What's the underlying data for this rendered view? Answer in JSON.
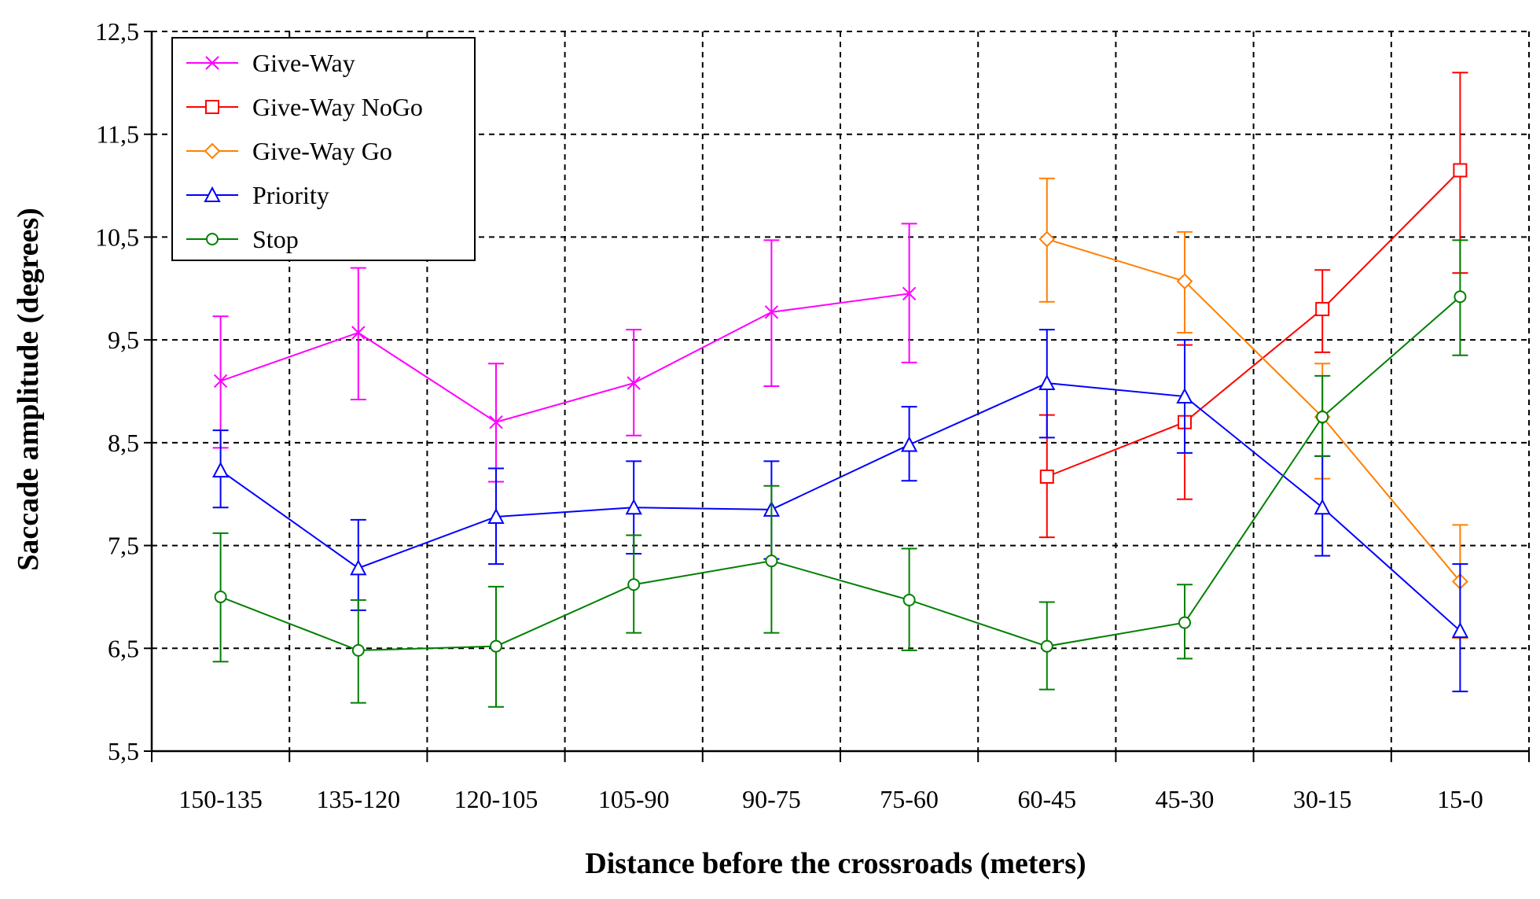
{
  "chart_data": {
    "type": "line",
    "title": "",
    "xlabel": "Distance before the crossroads (meters)",
    "ylabel": "Saccade amplitude (degrees)",
    "categories": [
      "150-135",
      "135-120",
      "120-105",
      "105-90",
      "90-75",
      "75-60",
      "60-45",
      "45-30",
      "30-15",
      "15-0"
    ],
    "ylim": [
      5.5,
      12.5
    ],
    "yticks": [
      "5,5",
      "6,5",
      "7,5",
      "8,5",
      "9,5",
      "10,5",
      "11,5",
      "12,5"
    ],
    "grid": true,
    "legend_position": "top-left",
    "series": [
      {
        "name": "Give-Way",
        "color": "#ff00ff",
        "marker": "x",
        "values": [
          9.1,
          9.57,
          8.7,
          9.08,
          9.77,
          9.95,
          null,
          null,
          null,
          null
        ],
        "err_low": [
          8.45,
          8.92,
          8.12,
          8.57,
          9.05,
          9.28,
          null,
          null,
          null,
          null
        ],
        "err_high": [
          9.73,
          10.2,
          9.27,
          9.6,
          10.47,
          10.63,
          null,
          null,
          null,
          null
        ]
      },
      {
        "name": "Give-Way NoGo",
        "color": "#ff0000",
        "marker": "square",
        "values": [
          null,
          null,
          null,
          null,
          null,
          null,
          8.17,
          8.7,
          9.8,
          11.15
        ],
        "err_low": [
          null,
          null,
          null,
          null,
          null,
          null,
          7.58,
          7.95,
          9.38,
          10.15
        ],
        "err_high": [
          null,
          null,
          null,
          null,
          null,
          null,
          8.77,
          9.45,
          10.18,
          12.1
        ]
      },
      {
        "name": "Give-Way Go",
        "color": "#ff8000",
        "marker": "diamond",
        "values": [
          null,
          null,
          null,
          null,
          null,
          null,
          10.48,
          10.07,
          8.75,
          7.15
        ],
        "err_low": [
          null,
          null,
          null,
          null,
          null,
          null,
          9.87,
          9.57,
          8.15,
          6.6
        ],
        "err_high": [
          null,
          null,
          null,
          null,
          null,
          null,
          11.07,
          10.55,
          9.27,
          7.7
        ]
      },
      {
        "name": "Priority",
        "color": "#0000ff",
        "marker": "triangle",
        "values": [
          8.23,
          7.28,
          7.78,
          7.87,
          7.85,
          8.48,
          9.08,
          8.95,
          7.87,
          6.67
        ],
        "err_low": [
          7.87,
          6.87,
          7.32,
          7.42,
          7.37,
          8.13,
          8.55,
          8.4,
          7.4,
          6.08
        ],
        "err_high": [
          8.62,
          7.75,
          8.25,
          8.32,
          8.32,
          8.85,
          9.6,
          9.5,
          8.37,
          7.32
        ]
      },
      {
        "name": "Stop",
        "color": "#008000",
        "marker": "circle",
        "values": [
          7.0,
          6.48,
          6.52,
          7.12,
          7.35,
          6.97,
          6.52,
          6.75,
          8.75,
          9.92
        ],
        "err_low": [
          6.37,
          5.97,
          5.93,
          6.65,
          6.65,
          6.48,
          6.1,
          6.4,
          8.37,
          9.35
        ],
        "err_high": [
          7.62,
          6.97,
          7.1,
          7.6,
          8.08,
          7.47,
          6.95,
          7.12,
          9.15,
          10.47
        ]
      }
    ]
  }
}
